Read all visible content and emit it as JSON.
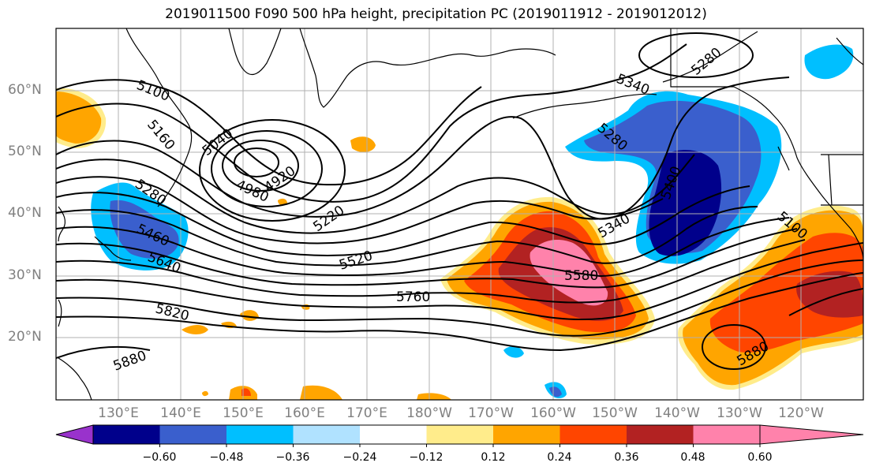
{
  "title": "2019011500 F090 500 hPa height, precipitation PC (2019011912 - 2019012012)",
  "lat_labels": [
    "60°N",
    "50°N",
    "40°N",
    "30°N",
    "20°N"
  ],
  "lon_labels": [
    "130°E",
    "140°E",
    "150°E",
    "160°E",
    "170°E",
    "180°W",
    "170°W",
    "160°W",
    "150°W",
    "140°W",
    "130°W",
    "120°W"
  ],
  "contour_labels": [
    "5100",
    "5160",
    "5040",
    "4920",
    "4980",
    "5280",
    "5460",
    "5640",
    "5220",
    "5520",
    "5820",
    "5760",
    "5880",
    "5340",
    "5280",
    "5340",
    "5400",
    "5580",
    "5100",
    "5880",
    "5280"
  ],
  "colorbar": {
    "ticks": [
      "−0.60",
      "−0.48",
      "−0.36",
      "−0.24",
      "−0.12",
      "0.12",
      "0.24",
      "0.36",
      "0.48",
      "0.60"
    ],
    "colors": [
      "#9932cc",
      "#00008b",
      "#3a5fcd",
      "#00bfff",
      "#b0e2ff",
      "#ffffff",
      "#ffec8b",
      "#ffa500",
      "#ff4500",
      "#b22222",
      "#ff82ab"
    ]
  }
}
